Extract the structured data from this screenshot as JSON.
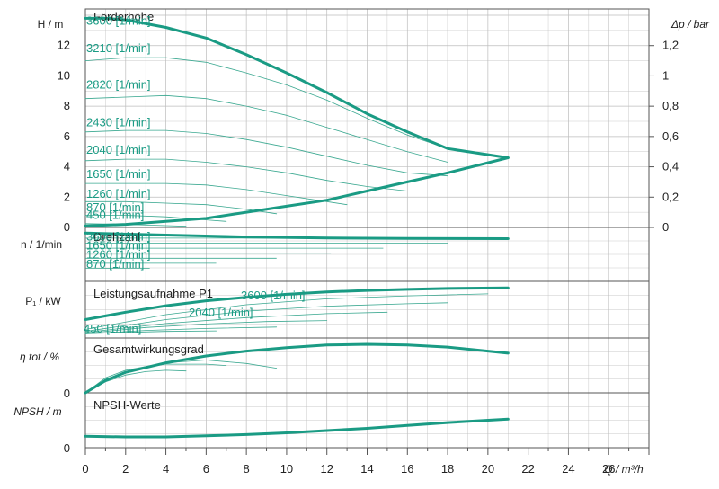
{
  "chart_data": [
    {
      "panel": "head",
      "type": "line",
      "title": "Förderhöhe",
      "ylabel_left": "H / m",
      "ylabel_right": "Δp / bar",
      "ylim": [
        0,
        14
      ],
      "yticks": [
        "0",
        "2",
        "4",
        "6",
        "8",
        "10",
        "12"
      ],
      "right_ylim": [
        0,
        1.4
      ],
      "right_yticks": [
        "0",
        "0,2",
        "0,4",
        "0,6",
        "0,8",
        "1",
        "1,2"
      ],
      "speed_labels": [
        "3600 [1/min]",
        "3210 [1/min]",
        "2820 [1/min]",
        "2430 [1/min]",
        "2040 [1/min]",
        "1650 [1/min]",
        "1260 [1/min]",
        "870 [1/min]",
        "450 [1/min]"
      ],
      "max_curve": {
        "name": "3600 [1/min]",
        "points": [
          [
            0,
            13.8
          ],
          [
            1,
            13.8
          ],
          [
            2,
            13.7
          ],
          [
            4,
            13.2
          ],
          [
            6,
            12.5
          ],
          [
            8,
            11.4
          ],
          [
            10,
            10.2
          ],
          [
            12,
            8.9
          ],
          [
            14,
            7.5
          ],
          [
            16,
            6.3
          ],
          [
            18,
            5.2
          ],
          [
            21,
            4.6
          ]
        ]
      },
      "system_curve": {
        "points": [
          [
            0,
            0.1
          ],
          [
            2,
            0.2
          ],
          [
            4,
            0.4
          ],
          [
            6,
            0.6
          ],
          [
            8,
            1.0
          ],
          [
            10,
            1.4
          ],
          [
            12,
            1.8
          ],
          [
            14,
            2.4
          ],
          [
            16,
            3.0
          ],
          [
            18,
            3.6
          ],
          [
            21,
            4.6
          ]
        ]
      },
      "speed_curves": [
        {
          "name": "3210 [1/min]",
          "points": [
            [
              0,
              11.0
            ],
            [
              2,
              11.2
            ],
            [
              4,
              11.2
            ],
            [
              6,
              10.9
            ],
            [
              8,
              10.2
            ],
            [
              10,
              9.4
            ],
            [
              12,
              8.4
            ],
            [
              14,
              7.2
            ],
            [
              16,
              6.1
            ],
            [
              18,
              5.2
            ],
            [
              20,
              4.8
            ]
          ]
        },
        {
          "name": "2820 [1/min]",
          "points": [
            [
              0,
              8.5
            ],
            [
              2,
              8.6
            ],
            [
              4,
              8.7
            ],
            [
              6,
              8.5
            ],
            [
              8,
              8.0
            ],
            [
              10,
              7.4
            ],
            [
              12,
              6.6
            ],
            [
              14,
              5.8
            ],
            [
              16,
              5.0
            ],
            [
              18,
              4.3
            ]
          ]
        },
        {
          "name": "2430 [1/min]",
          "points": [
            [
              0,
              6.3
            ],
            [
              2,
              6.4
            ],
            [
              4,
              6.4
            ],
            [
              6,
              6.2
            ],
            [
              8,
              5.8
            ],
            [
              10,
              5.3
            ],
            [
              12,
              4.7
            ],
            [
              14,
              4.1
            ],
            [
              16,
              3.6
            ],
            [
              18,
              3.4
            ]
          ]
        },
        {
          "name": "2040 [1/min]",
          "points": [
            [
              0,
              4.4
            ],
            [
              2,
              4.5
            ],
            [
              4,
              4.5
            ],
            [
              6,
              4.3
            ],
            [
              8,
              4.0
            ],
            [
              10,
              3.6
            ],
            [
              12,
              3.1
            ],
            [
              14,
              2.7
            ],
            [
              16,
              2.4
            ]
          ]
        },
        {
          "name": "1650 [1/min]",
          "points": [
            [
              0,
              2.9
            ],
            [
              2,
              2.9
            ],
            [
              4,
              2.9
            ],
            [
              6,
              2.8
            ],
            [
              8,
              2.5
            ],
            [
              10,
              2.1
            ],
            [
              12,
              1.7
            ],
            [
              13,
              1.5
            ]
          ]
        },
        {
          "name": "1260 [1/min]",
          "points": [
            [
              0,
              1.7
            ],
            [
              2,
              1.7
            ],
            [
              4,
              1.6
            ],
            [
              6,
              1.5
            ],
            [
              8,
              1.2
            ],
            [
              9.5,
              0.9
            ]
          ]
        },
        {
          "name": "870 [1/min]",
          "points": [
            [
              0,
              0.8
            ],
            [
              2,
              0.8
            ],
            [
              4,
              0.7
            ],
            [
              6,
              0.5
            ],
            [
              7,
              0.4
            ]
          ]
        },
        {
          "name": "450 [1/min]",
          "points": [
            [
              0,
              0.25
            ],
            [
              2,
              0.2
            ],
            [
              4,
              0.12
            ],
            [
              5,
              0.08
            ]
          ]
        }
      ]
    },
    {
      "panel": "speed",
      "type": "line",
      "title": "Drehzahl",
      "ylabel_left": "n / 1/min",
      "labels": [
        "3600 [1/min]",
        "1650 [1/min]",
        "1260 [1/min]",
        "870 [1/min]"
      ],
      "max_curve": {
        "points": [
          [
            0,
            3600
          ],
          [
            4,
            3450
          ],
          [
            8,
            3300
          ],
          [
            12,
            3220
          ],
          [
            16,
            3180
          ],
          [
            21,
            3170
          ]
        ]
      },
      "speed_lines": [
        {
          "value": 3210,
          "x_end": 20
        },
        {
          "value": 2820,
          "x_end": 18
        },
        {
          "value": 2430,
          "x_end": 14.8
        },
        {
          "value": 2040,
          "x_end": 12.2
        },
        {
          "value": 1650,
          "x_end": 9.5
        },
        {
          "value": 1260,
          "x_end": 6.5
        },
        {
          "value": 870,
          "x_end": 3.2
        }
      ]
    },
    {
      "panel": "power",
      "type": "line",
      "title": "Leistungsaufnahme P1",
      "ylabel_left": "P₁ / kW",
      "labels": [
        "3600 [1/min]",
        "2040 [1/min]",
        "450 [1/min]"
      ],
      "max_curve": {
        "points": [
          [
            0,
            0.3
          ],
          [
            2,
            0.45
          ],
          [
            4,
            0.58
          ],
          [
            6,
            0.68
          ],
          [
            8,
            0.75
          ],
          [
            10,
            0.81
          ],
          [
            12,
            0.86
          ],
          [
            14,
            0.89
          ],
          [
            16,
            0.91
          ],
          [
            18,
            0.93
          ],
          [
            21,
            0.94
          ]
        ]
      },
      "speed_curves": [
        {
          "points": [
            [
              0,
              0.1
            ],
            [
              4,
              0.4
            ],
            [
              8,
              0.6
            ],
            [
              12,
              0.72
            ],
            [
              16,
              0.78
            ],
            [
              20,
              0.82
            ]
          ]
        },
        {
          "points": [
            [
              0,
              0.06
            ],
            [
              4,
              0.3
            ],
            [
              8,
              0.47
            ],
            [
              12,
              0.57
            ],
            [
              16,
              0.62
            ],
            [
              18,
              0.64
            ]
          ]
        },
        {
          "points": [
            [
              0,
              0.04
            ],
            [
              4,
              0.22
            ],
            [
              8,
              0.34
            ],
            [
              12,
              0.42
            ],
            [
              15,
              0.45
            ]
          ]
        },
        {
          "points": [
            [
              0,
              0.02
            ],
            [
              3,
              0.14
            ],
            [
              6,
              0.21
            ],
            [
              9,
              0.26
            ],
            [
              12,
              0.28
            ]
          ]
        },
        {
          "points": [
            [
              0,
              0.01
            ],
            [
              3,
              0.08
            ],
            [
              6,
              0.12
            ],
            [
              9.5,
              0.15
            ]
          ]
        },
        {
          "points": [
            [
              0,
              0.01
            ],
            [
              2,
              0.04
            ],
            [
              4,
              0.06
            ],
            [
              6.5,
              0.07
            ]
          ]
        }
      ]
    },
    {
      "panel": "efficiency",
      "type": "line",
      "title": "Gesamtwirkungsgrad",
      "ylabel_left": "η tot / %",
      "yticks": [
        "0"
      ],
      "max_curve": {
        "points": [
          [
            0,
            0
          ],
          [
            1,
            18
          ],
          [
            2,
            30
          ],
          [
            4,
            44
          ],
          [
            6,
            54
          ],
          [
            8,
            61
          ],
          [
            10,
            66
          ],
          [
            12,
            70
          ],
          [
            14,
            71
          ],
          [
            16,
            70
          ],
          [
            18,
            67
          ],
          [
            21,
            58
          ]
        ]
      },
      "speed_curves": [
        {
          "points": [
            [
              0,
              0
            ],
            [
              1,
              22
            ],
            [
              2,
              33
            ],
            [
              4,
              44
            ],
            [
              6,
              48
            ],
            [
              8,
              43
            ],
            [
              9.5,
              36
            ]
          ]
        },
        {
          "points": [
            [
              0,
              0
            ],
            [
              1,
              20
            ],
            [
              2,
              30
            ],
            [
              3,
              38
            ],
            [
              4,
              42
            ],
            [
              6,
              42
            ],
            [
              7,
              40
            ]
          ]
        },
        {
          "points": [
            [
              0,
              0
            ],
            [
              1,
              16
            ],
            [
              2,
              26
            ],
            [
              3,
              31
            ],
            [
              4,
              33
            ],
            [
              5,
              32
            ]
          ]
        }
      ]
    },
    {
      "panel": "npsh",
      "type": "line",
      "title": "NPSH-Werte",
      "ylabel_left": "NPSH / m",
      "yticks": [
        "0"
      ],
      "xlabel": "Q / m³/h",
      "xticks": [
        "0",
        "2",
        "4",
        "6",
        "8",
        "10",
        "12",
        "14",
        "16",
        "18",
        "20",
        "22",
        "24",
        "26"
      ],
      "xlim": [
        0,
        28
      ],
      "max_curve": {
        "points": [
          [
            0,
            1.0
          ],
          [
            2,
            0.95
          ],
          [
            4,
            0.95
          ],
          [
            6,
            1.05
          ],
          [
            8,
            1.15
          ],
          [
            10,
            1.3
          ],
          [
            12,
            1.5
          ],
          [
            14,
            1.7
          ],
          [
            16,
            1.95
          ],
          [
            18,
            2.2
          ],
          [
            21,
            2.5
          ]
        ]
      }
    }
  ],
  "colors": {
    "curve": "#1a9b84",
    "thin": "#3aa890",
    "grid": "#bdbdbd",
    "frame": "#555555",
    "text": "#222222"
  }
}
